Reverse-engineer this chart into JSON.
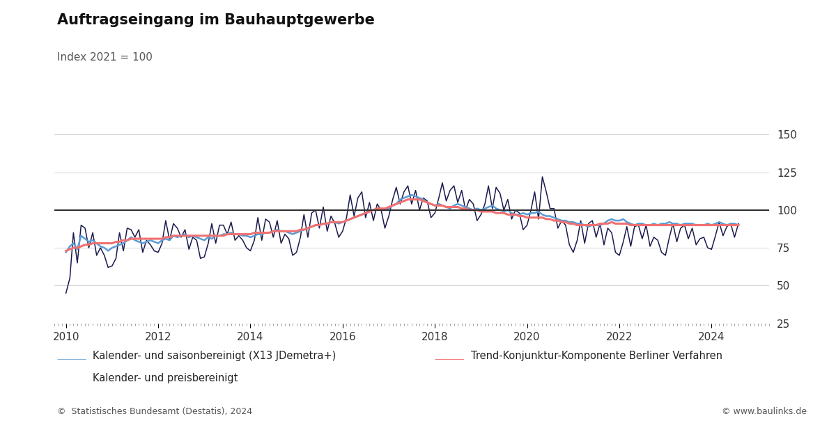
{
  "title": "Auftragseingang im Bauhauptgewerbe",
  "subtitle": "Index 2021 = 100",
  "yticks": [
    25,
    50,
    75,
    100,
    125,
    150
  ],
  "ylim": [
    25,
    158
  ],
  "xtick_years": [
    2010,
    2012,
    2014,
    2016,
    2018,
    2020,
    2022,
    2024
  ],
  "hline_y": 100,
  "hline_color": "#2e2e2e",
  "bg_color": "#ffffff",
  "grid_color": "#cccccc",
  "color_saison": "#5b9bd5",
  "color_trend": "#f07070",
  "color_preis": "#1a1a4e",
  "legend": [
    {
      "label": "Kalender- und saisonbereinigt (X13 JDemetra+)",
      "color": "#5b9bd5",
      "lw": 1.8
    },
    {
      "label": "Trend-Konjunktur-Komponente Berliner Verfahren",
      "color": "#f07070",
      "lw": 2.0
    },
    {
      "label": "Kalender- und preisbereinigt",
      "color": "#1a1a4e",
      "lw": 1.2
    }
  ],
  "footer_left": "©  Statistisches Bundesamt (Destatis), 2024",
  "footer_right": "© www.baulinks.de",
  "saison": [
    72,
    76,
    78,
    74,
    83,
    81,
    79,
    80,
    78,
    76,
    75,
    73,
    75,
    76,
    77,
    78,
    80,
    82,
    80,
    79,
    78,
    79,
    80,
    79,
    78,
    80,
    81,
    80,
    83,
    82,
    83,
    84,
    82,
    83,
    82,
    81,
    80,
    82,
    81,
    83,
    83,
    84,
    84,
    85,
    84,
    84,
    83,
    83,
    82,
    83,
    84,
    84,
    85,
    85,
    86,
    87,
    86,
    86,
    85,
    84,
    85,
    86,
    87,
    88,
    89,
    90,
    90,
    91,
    91,
    92,
    92,
    91,
    92,
    93,
    94,
    95,
    96,
    97,
    98,
    99,
    100,
    101,
    100,
    100,
    101,
    103,
    104,
    107,
    108,
    109,
    110,
    109,
    108,
    107,
    105,
    104,
    103,
    104,
    103,
    102,
    101,
    103,
    104,
    103,
    102,
    101,
    100,
    101,
    100,
    101,
    102,
    103,
    101,
    100,
    99,
    100,
    98,
    97,
    97,
    98,
    97,
    98,
    98,
    99,
    97,
    96,
    96,
    95,
    94,
    93,
    93,
    92,
    92,
    91,
    91,
    90,
    89,
    90,
    90,
    90,
    91,
    93,
    94,
    93,
    93,
    94,
    92,
    91,
    90,
    91,
    91,
    90,
    90,
    91,
    90,
    91,
    91,
    92,
    91,
    91,
    90,
    91,
    91,
    91,
    90,
    90,
    90,
    91,
    90,
    91,
    92,
    91,
    90,
    91,
    91,
    90
  ],
  "trend": [
    73,
    74,
    75,
    75,
    76,
    77,
    77,
    78,
    78,
    78,
    78,
    78,
    78,
    79,
    79,
    80,
    80,
    81,
    81,
    81,
    81,
    81,
    81,
    81,
    81,
    81,
    82,
    82,
    83,
    83,
    83,
    83,
    83,
    83,
    83,
    83,
    83,
    83,
    83,
    83,
    83,
    83,
    84,
    84,
    84,
    84,
    84,
    84,
    84,
    85,
    85,
    85,
    85,
    85,
    86,
    86,
    86,
    86,
    86,
    86,
    86,
    87,
    87,
    88,
    89,
    90,
    90,
    91,
    91,
    92,
    92,
    92,
    92,
    93,
    94,
    95,
    96,
    97,
    98,
    99,
    100,
    101,
    101,
    101,
    102,
    103,
    104,
    105,
    106,
    107,
    107,
    107,
    107,
    106,
    105,
    104,
    103,
    103,
    103,
    102,
    102,
    102,
    102,
    101,
    101,
    100,
    100,
    100,
    99,
    99,
    99,
    99,
    98,
    98,
    98,
    97,
    97,
    97,
    96,
    96,
    95,
    95,
    95,
    95,
    95,
    94,
    94,
    93,
    93,
    92,
    92,
    91,
    91,
    90,
    90,
    90,
    90,
    90,
    90,
    91,
    91,
    91,
    92,
    91,
    91,
    91,
    91,
    90,
    90,
    90,
    90,
    90,
    90,
    90,
    90,
    90,
    90,
    90,
    90,
    90,
    90,
    90,
    90,
    90,
    90,
    90,
    90,
    90,
    90,
    90,
    90,
    90,
    90,
    90,
    90,
    90
  ],
  "preis": [
    45,
    55,
    85,
    65,
    90,
    88,
    75,
    85,
    70,
    75,
    70,
    62,
    63,
    68,
    85,
    73,
    88,
    87,
    82,
    87,
    72,
    80,
    77,
    73,
    72,
    78,
    93,
    80,
    91,
    88,
    82,
    87,
    74,
    82,
    80,
    68,
    69,
    78,
    91,
    78,
    90,
    90,
    84,
    92,
    80,
    83,
    80,
    75,
    73,
    80,
    95,
    80,
    94,
    92,
    82,
    93,
    78,
    84,
    81,
    70,
    72,
    82,
    97,
    82,
    98,
    100,
    88,
    102,
    86,
    96,
    91,
    82,
    86,
    95,
    110,
    96,
    108,
    112,
    95,
    105,
    93,
    104,
    100,
    88,
    96,
    107,
    115,
    104,
    112,
    116,
    104,
    113,
    100,
    108,
    106,
    95,
    98,
    108,
    118,
    106,
    113,
    116,
    105,
    113,
    100,
    107,
    104,
    93,
    97,
    104,
    116,
    101,
    115,
    111,
    100,
    107,
    94,
    100,
    98,
    87,
    90,
    100,
    112,
    94,
    122,
    112,
    101,
    101,
    88,
    93,
    90,
    77,
    72,
    80,
    93,
    78,
    91,
    93,
    82,
    91,
    77,
    88,
    85,
    72,
    70,
    79,
    89,
    76,
    89,
    90,
    81,
    90,
    76,
    82,
    80,
    72,
    70,
    82,
    91,
    79,
    88,
    90,
    81,
    88,
    77,
    81,
    82,
    75,
    74,
    83,
    92,
    83,
    89,
    91,
    82,
    91
  ]
}
